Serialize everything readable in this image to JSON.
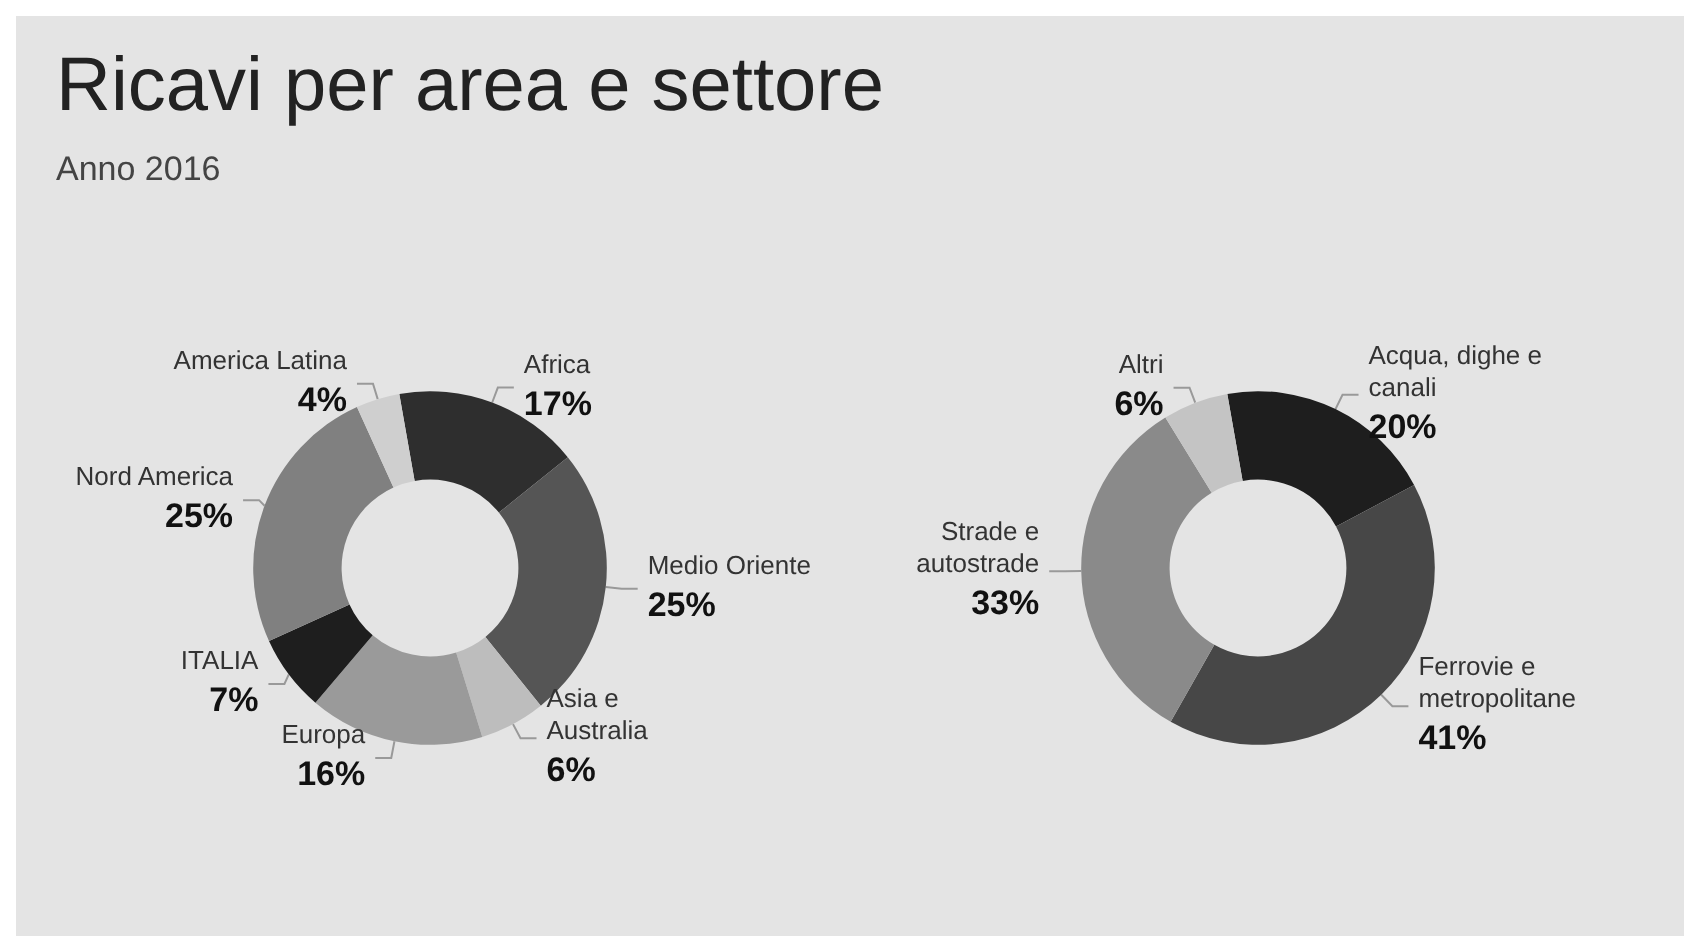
{
  "chart_data": [
    {
      "type": "donut",
      "title": "Ricavi per area e settore",
      "subtitle": "Anno 2016",
      "categories": [
        "Africa",
        "Medio Oriente",
        "Asia e Australia",
        "Europa",
        "ITALIA",
        "Nord America",
        "America Latina"
      ],
      "values": [
        17,
        25,
        6,
        16,
        7,
        25,
        4
      ],
      "value_labels": [
        "17%",
        "25%",
        "6%",
        "16%",
        "7%",
        "25%",
        "4%"
      ],
      "colors": [
        "#2e2e2e",
        "#555555",
        "#bdbdbd",
        "#9a9a9a",
        "#1e1e1e",
        "#808080",
        "#cfcfcf"
      ]
    },
    {
      "type": "donut",
      "categories": [
        "Acqua, dighe e canali",
        "Ferrovie e metropolitane",
        "Strade e autostrade",
        "Altri"
      ],
      "values": [
        20,
        41,
        33,
        6
      ],
      "value_labels": [
        "20%",
        "41%",
        "33%",
        "6%"
      ],
      "colors": [
        "#1e1e1e",
        "#474747",
        "#8a8a8a",
        "#c4c4c4"
      ]
    }
  ]
}
